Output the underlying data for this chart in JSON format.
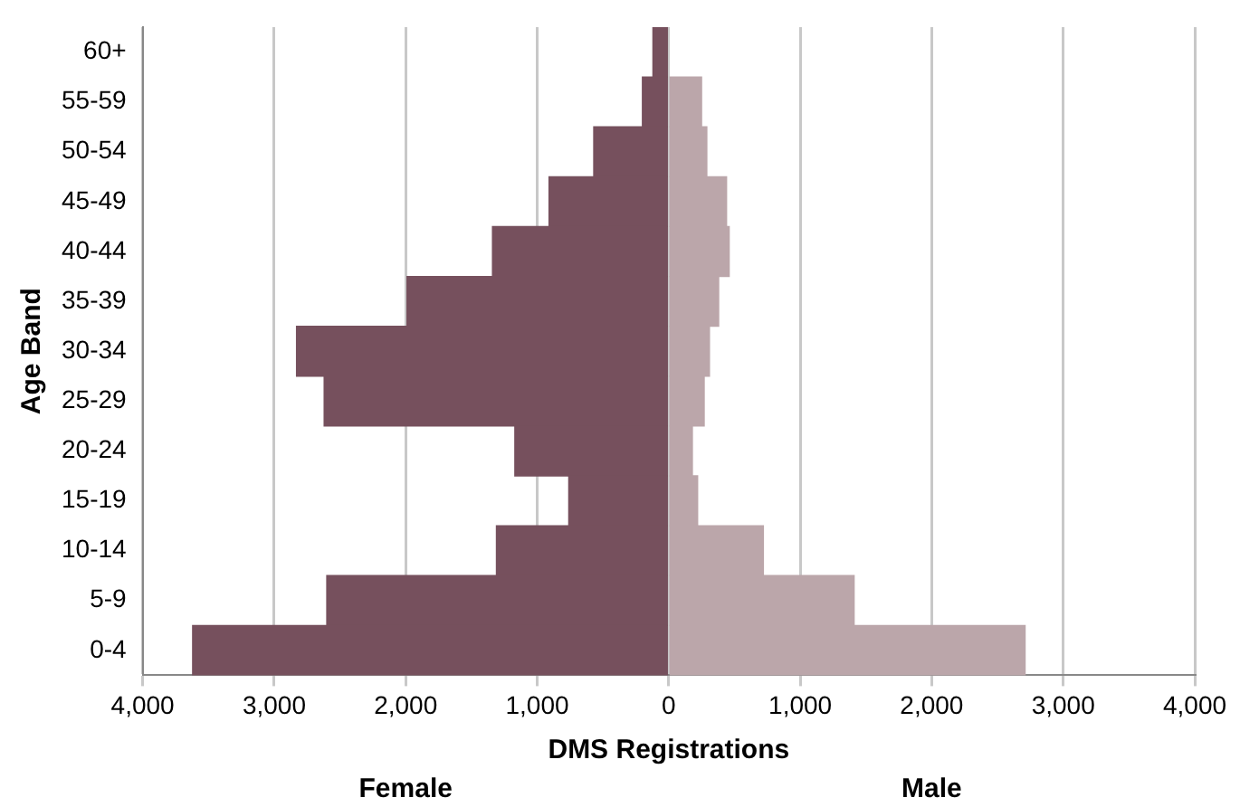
{
  "chart_data": {
    "type": "bar",
    "orientation": "horizontal",
    "stacked": true,
    "xlabel": "DMS Registrations",
    "ylabel": "Age Band",
    "categories": [
      "60+",
      "55-59",
      "50-54",
      "45-49",
      "40-44",
      "35-39",
      "30-34",
      "25-29",
      "20-24",
      "15-19",
      "10-14",
      "5-9",
      "0-4"
    ],
    "series": [
      {
        "color": "#76505d",
        "values": [
          -120,
          -200,
          -570,
          -910,
          -1340,
          -1990,
          -2830,
          -2620,
          -1170,
          -760,
          -1310,
          -2600,
          -3620
        ]
      },
      {
        "color": "#bba6aa",
        "values": [
          null,
          250,
          290,
          440,
          460,
          380,
          310,
          270,
          180,
          220,
          720,
          1410,
          2710
        ]
      }
    ],
    "xlim": [
      -4000,
      4000
    ],
    "xticks": [
      {
        "value": -4000,
        "label": "4,000"
      },
      {
        "value": -3000,
        "label": "3,000"
      },
      {
        "value": -2000,
        "label": "2,000"
      },
      {
        "value": -1000,
        "label": "1,000"
      },
      0,
      {
        "value": 1000,
        "label": "1,000"
      },
      {
        "value": 2000,
        "label": "2,000"
      },
      {
        "value": 3000,
        "label": "3,000"
      },
      {
        "value": 4000,
        "label": "4,000"
      }
    ],
    "grid": "x",
    "legend": false,
    "annotations": [
      "Female",
      "Male"
    ]
  }
}
